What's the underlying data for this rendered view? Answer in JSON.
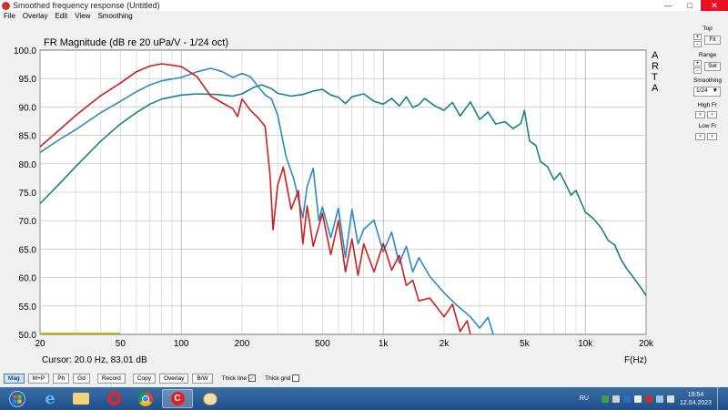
{
  "window": {
    "title": "Smoothed frequency response (Untitled)"
  },
  "menu": [
    "File",
    "Overlay",
    "Edit",
    "View",
    "Smoothing"
  ],
  "right_panel": {
    "top_label": "Top",
    "fit_label": "Fit",
    "range_label": "Range",
    "set_label": "Set",
    "smoothing_label": "Smoothing",
    "smoothing_value": "1/24",
    "high_fr_label": "High Fr",
    "low_fr_label": "Low Fr"
  },
  "bottom_bar": {
    "buttons": [
      "Mag",
      "M+P",
      "Ph",
      "Gd",
      "Record",
      "Copy",
      "Overlay",
      "B/W"
    ],
    "thick_line_label": "Thick line",
    "thick_grid_label": "Thick grid"
  },
  "taskbar": {
    "lang": "RU",
    "time": "19:54",
    "date": "12.04.2023"
  },
  "chart_data": {
    "type": "line",
    "title": "FR Magnitude (dB re 20 uPa/V - 1/24 oct)",
    "watermark": [
      "A",
      "R",
      "T",
      "A"
    ],
    "xlabel": "F(Hz)",
    "xscale": "log",
    "xlim": [
      20,
      20000
    ],
    "ylim": [
      50,
      100
    ],
    "yticks": [
      "100.0",
      "95.0",
      "90.0",
      "85.0",
      "80.0",
      "75.0",
      "70.0",
      "65.0",
      "60.0",
      "55.0",
      "50.0"
    ],
    "xticks": [
      "20",
      "50",
      "100",
      "200",
      "500",
      "1k",
      "2k",
      "5k",
      "10k",
      "20k"
    ],
    "cursor_text": "Cursor: 20.0 Hz, 83.01 dB",
    "grid": true,
    "series": [
      {
        "color": "#1a7f86",
        "points": [
          [
            20,
            73
          ],
          [
            25,
            76.5
          ],
          [
            30,
            79.5
          ],
          [
            40,
            84
          ],
          [
            50,
            87
          ],
          [
            60,
            89
          ],
          [
            70,
            90.5
          ],
          [
            80,
            91.4
          ],
          [
            100,
            92.1
          ],
          [
            120,
            92.3
          ],
          [
            150,
            92.2
          ],
          [
            180,
            91.9
          ],
          [
            200,
            92.3
          ],
          [
            230,
            93.5
          ],
          [
            250,
            93.9
          ],
          [
            280,
            93.2
          ],
          [
            300,
            92.4
          ],
          [
            350,
            91.9
          ],
          [
            400,
            92.2
          ],
          [
            450,
            92.8
          ],
          [
            500,
            93.1
          ],
          [
            550,
            92.1
          ],
          [
            600,
            91.7
          ],
          [
            650,
            90.6
          ],
          [
            700,
            91.8
          ],
          [
            800,
            92.3
          ],
          [
            900,
            91.0
          ],
          [
            1000,
            90.5
          ],
          [
            1100,
            91.5
          ],
          [
            1200,
            90.2
          ],
          [
            1300,
            91.8
          ],
          [
            1400,
            89.9
          ],
          [
            1500,
            90.4
          ],
          [
            1600,
            91.5
          ],
          [
            1800,
            90.2
          ],
          [
            2000,
            89.4
          ],
          [
            2200,
            90.8
          ],
          [
            2400,
            88.4
          ],
          [
            2700,
            90.9
          ],
          [
            3000,
            87.8
          ],
          [
            3300,
            89.1
          ],
          [
            3600,
            87.0
          ],
          [
            4000,
            87.4
          ],
          [
            4400,
            86.2
          ],
          [
            4800,
            87.1
          ],
          [
            5000,
            89.4
          ],
          [
            5300,
            84.0
          ],
          [
            5700,
            83.2
          ],
          [
            6000,
            80.4
          ],
          [
            6500,
            79.5
          ],
          [
            7000,
            77.2
          ],
          [
            7500,
            78.4
          ],
          [
            8000,
            76.4
          ],
          [
            8500,
            74.5
          ],
          [
            9000,
            75.3
          ],
          [
            10000,
            71.5
          ],
          [
            11000,
            70.3
          ],
          [
            12000,
            68.7
          ],
          [
            13000,
            66.5
          ],
          [
            14000,
            65.7
          ],
          [
            15000,
            63.2
          ],
          [
            16000,
            61.6
          ],
          [
            17000,
            60.4
          ],
          [
            18000,
            59.2
          ],
          [
            19000,
            58.0
          ],
          [
            20000,
            56.8
          ]
        ]
      },
      {
        "color": "#2b8ac6",
        "points": [
          [
            20,
            82
          ],
          [
            25,
            84.3
          ],
          [
            30,
            86
          ],
          [
            40,
            89
          ],
          [
            50,
            91
          ],
          [
            60,
            92.7
          ],
          [
            70,
            93.9
          ],
          [
            80,
            94.6
          ],
          [
            100,
            95.2
          ],
          [
            120,
            96.2
          ],
          [
            140,
            96.8
          ],
          [
            160,
            96.2
          ],
          [
            180,
            95.2
          ],
          [
            200,
            95.9
          ],
          [
            220,
            95.3
          ],
          [
            240,
            93.6
          ],
          [
            260,
            92.1
          ],
          [
            280,
            91.4
          ],
          [
            300,
            88.6
          ],
          [
            330,
            81.3
          ],
          [
            360,
            77.4
          ],
          [
            400,
            70.5
          ],
          [
            420,
            76.0
          ],
          [
            450,
            79.2
          ],
          [
            480,
            70.0
          ],
          [
            500,
            72.4
          ],
          [
            550,
            67.0
          ],
          [
            600,
            72.2
          ],
          [
            650,
            63.5
          ],
          [
            700,
            72.0
          ],
          [
            750,
            65.9
          ],
          [
            800,
            68.5
          ],
          [
            900,
            70.1
          ],
          [
            1000,
            64.5
          ],
          [
            1100,
            68.0
          ],
          [
            1200,
            62.5
          ],
          [
            1300,
            65.5
          ],
          [
            1400,
            61.0
          ],
          [
            1500,
            63.5
          ],
          [
            1700,
            60.2
          ],
          [
            2000,
            57.3
          ],
          [
            2300,
            55.2
          ],
          [
            2700,
            53.1
          ],
          [
            3000,
            51.1
          ],
          [
            3300,
            53.0
          ],
          [
            3500,
            50.0
          ]
        ]
      },
      {
        "color": "#cc1f1f",
        "points": [
          [
            20,
            83
          ],
          [
            25,
            86
          ],
          [
            30,
            88.5
          ],
          [
            40,
            92
          ],
          [
            50,
            94.2
          ],
          [
            60,
            96.2
          ],
          [
            70,
            97.2
          ],
          [
            80,
            97.6
          ],
          [
            100,
            97.1
          ],
          [
            120,
            95.3
          ],
          [
            140,
            91.9
          ],
          [
            160,
            90.7
          ],
          [
            180,
            89.7
          ],
          [
            190,
            88.3
          ],
          [
            200,
            91.4
          ],
          [
            220,
            89.4
          ],
          [
            240,
            88.1
          ],
          [
            260,
            86.6
          ],
          [
            275,
            78.1
          ],
          [
            285,
            68.4
          ],
          [
            300,
            76.2
          ],
          [
            320,
            79.4
          ],
          [
            350,
            72.0
          ],
          [
            380,
            75.3
          ],
          [
            400,
            65.9
          ],
          [
            420,
            72.6
          ],
          [
            450,
            65.5
          ],
          [
            500,
            71.3
          ],
          [
            550,
            64.0
          ],
          [
            600,
            70.0
          ],
          [
            650,
            61.0
          ],
          [
            700,
            66.8
          ],
          [
            750,
            60.4
          ],
          [
            800,
            65.9
          ],
          [
            900,
            61.0
          ],
          [
            1000,
            66.0
          ],
          [
            1100,
            61.3
          ],
          [
            1200,
            63.9
          ],
          [
            1300,
            58.6
          ],
          [
            1400,
            59.5
          ],
          [
            1500,
            55.9
          ],
          [
            1700,
            56.4
          ],
          [
            2000,
            53.1
          ],
          [
            2200,
            55.3
          ],
          [
            2400,
            50.5
          ],
          [
            2600,
            52.4
          ],
          [
            2700,
            50.0
          ]
        ]
      },
      {
        "color": "#d2c400",
        "points": [
          [
            20,
            50.2
          ],
          [
            50,
            50.2
          ]
        ]
      }
    ]
  }
}
